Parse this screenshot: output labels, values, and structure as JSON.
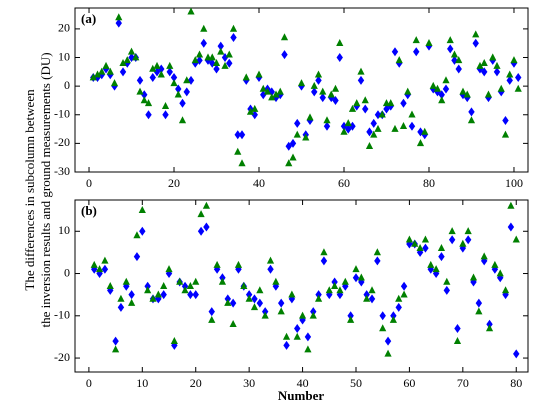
{
  "ylabel_lines": [
    "The differences in subcolumn between",
    "the inversion results and ground measurements (DU)"
  ],
  "xlabel": "Number",
  "chart_data": [
    {
      "type": "scatter",
      "panel_label": "(a)",
      "xlim": [
        -3.3,
        103.3
      ],
      "ylim": [
        -30,
        27.3
      ],
      "xticks": [
        0,
        20,
        40,
        60,
        80,
        100
      ],
      "yticks": [
        -30,
        -20,
        -10,
        0,
        10,
        20
      ],
      "x": [
        1,
        2,
        3,
        4,
        5,
        6,
        7,
        8,
        9,
        10,
        11,
        12,
        13,
        14,
        15,
        16,
        17,
        18,
        19,
        20,
        21,
        22,
        23,
        24,
        25,
        26,
        27,
        28,
        29,
        30,
        31,
        32,
        33,
        34,
        35,
        36,
        37,
        38,
        39,
        40,
        41,
        42,
        43,
        44,
        45,
        46,
        47,
        48,
        49,
        50,
        51,
        52,
        53,
        54,
        55,
        56,
        57,
        58,
        59,
        60,
        61,
        62,
        63,
        64,
        65,
        66,
        67,
        68,
        69,
        70,
        71,
        72,
        73,
        74,
        75,
        76,
        77,
        78,
        79,
        80,
        81,
        82,
        83,
        84,
        85,
        86,
        87,
        88,
        89,
        90,
        91,
        92,
        93,
        94,
        95,
        96,
        97,
        98,
        99,
        100,
        101
      ],
      "series": [
        {
          "color": "#0000ff",
          "marker": "diamond",
          "values": [
            3,
            3,
            4,
            6,
            4,
            0,
            22,
            5,
            8,
            10,
            10,
            2,
            -3,
            -10,
            3,
            5,
            6,
            -10,
            5,
            3,
            -1,
            -6,
            -2,
            2,
            8,
            9,
            15,
            9,
            8,
            6,
            14,
            10,
            8,
            17,
            -17,
            -17,
            2,
            -8,
            -10,
            3,
            -3,
            -1,
            -2,
            -4,
            -3,
            11,
            -21,
            -20,
            -13,
            0,
            -17,
            -12,
            -2,
            2,
            -4,
            -14,
            -4,
            -5,
            10,
            -14,
            -15,
            -14,
            -7,
            2,
            -8,
            -16,
            -13,
            -10,
            -10,
            -8,
            -7,
            12,
            8,
            -6,
            -3,
            -14,
            12,
            -16,
            -17,
            14,
            -1,
            -2,
            -3,
            -1,
            13,
            9,
            6,
            -3,
            -4,
            -9,
            15,
            6,
            5,
            -4,
            9,
            5,
            -2,
            -12,
            2,
            8,
            3
          ]
        },
        {
          "color": "#008000",
          "marker": "triangle",
          "values": [
            3,
            4,
            5,
            7,
            5,
            1,
            24,
            8,
            9,
            12,
            10,
            -2,
            -5,
            -6,
            6,
            7,
            4,
            -7,
            7,
            1,
            -3,
            -12,
            2,
            26,
            9,
            11,
            20,
            10,
            10,
            8,
            12,
            7,
            11,
            20,
            -23,
            -27,
            3,
            -9,
            -8,
            4,
            -1,
            -2,
            -4,
            -3,
            -2,
            17,
            -27,
            -25,
            -17,
            1,
            -18,
            -11,
            0,
            4,
            -2,
            -12,
            -3,
            -1,
            15,
            -16,
            -13,
            -8,
            -6,
            5,
            -5,
            -21,
            -17,
            -15,
            -10,
            -6,
            -6,
            -15,
            9,
            -14,
            -2,
            -10,
            16,
            -20,
            -16,
            15,
            0,
            -1,
            -5,
            2,
            16,
            11,
            9,
            -2,
            -3,
            -12,
            18,
            7,
            8,
            -3,
            10,
            7,
            -1,
            -17,
            4,
            9,
            -1
          ]
        }
      ]
    },
    {
      "type": "scatter",
      "panel_label": "(b)",
      "xlim": [
        -2.6,
        82.2
      ],
      "ylim": [
        -23.3,
        17.4
      ],
      "xticks": [
        0,
        10,
        20,
        30,
        40,
        50,
        60,
        70,
        80
      ],
      "yticks": [
        -20,
        -10,
        0,
        10
      ],
      "x": [
        1,
        2,
        3,
        4,
        5,
        6,
        7,
        8,
        9,
        10,
        11,
        12,
        13,
        14,
        15,
        16,
        17,
        18,
        19,
        20,
        21,
        22,
        23,
        24,
        25,
        26,
        27,
        28,
        29,
        30,
        31,
        32,
        33,
        34,
        35,
        36,
        37,
        38,
        39,
        40,
        41,
        42,
        43,
        44,
        45,
        46,
        47,
        48,
        49,
        50,
        51,
        52,
        53,
        54,
        55,
        56,
        57,
        58,
        59,
        60,
        61,
        62,
        63,
        64,
        65,
        66,
        67,
        68,
        69,
        70,
        71,
        72,
        73,
        74,
        75,
        76,
        77,
        78,
        79,
        80
      ],
      "series": [
        {
          "color": "#0000ff",
          "marker": "diamond",
          "values": [
            1,
            0,
            1,
            -4,
            -16,
            -8,
            -3,
            -5,
            4,
            10,
            -3,
            -6,
            -6,
            -5,
            0,
            -17,
            -2,
            -3,
            -5,
            -5,
            10,
            11,
            -9,
            1,
            -1,
            -6,
            -7,
            1,
            -3,
            -5,
            -6,
            -7,
            -9,
            1,
            -3,
            -7,
            -17,
            -6,
            -13,
            -11,
            -15,
            -9,
            -5,
            3,
            -5,
            -2,
            -5,
            -3,
            -10,
            -1,
            -2,
            -5,
            -6,
            3,
            -10,
            -16,
            -10,
            -8,
            -3,
            7,
            7,
            5,
            6,
            1,
            0,
            4,
            -4,
            8,
            -13,
            6,
            8,
            -2,
            -7,
            3,
            -12,
            1,
            -1,
            -5,
            11,
            -19
          ]
        },
        {
          "color": "#008000",
          "marker": "triangle",
          "values": [
            2,
            1,
            3,
            -3,
            -18,
            -6,
            -2,
            -7,
            9,
            15,
            -4,
            -6,
            -5,
            -3,
            1,
            -16,
            -2,
            -4,
            -3,
            -2,
            14,
            16,
            -11,
            2,
            -2,
            -7,
            -12,
            2,
            -3,
            -6,
            -8,
            -4,
            -10,
            3,
            -2,
            -9,
            -15,
            -5,
            -15,
            -10,
            -18,
            -10,
            -6,
            5,
            -4,
            -3,
            -4,
            -2,
            -11,
            1,
            -1,
            -6,
            -4,
            5,
            -13,
            -19,
            -11,
            -6,
            -5,
            8,
            7,
            6,
            8,
            2,
            1,
            6,
            -2,
            10,
            -16,
            7,
            10,
            -1,
            -9,
            4,
            -13,
            2,
            0,
            -4,
            16,
            8
          ]
        }
      ]
    }
  ]
}
